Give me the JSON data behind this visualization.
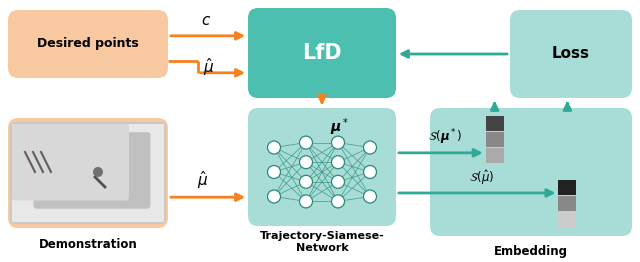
{
  "fig_width": 6.4,
  "fig_height": 2.62,
  "dpi": 100,
  "bg_color": "#ffffff",
  "orange_box_color": "#F8C8A0",
  "teal_box_color": "#4CBFB0",
  "teal_light_color": "#A8DDD7",
  "arrow_orange": "#F5821F",
  "arrow_teal": "#2EAA96",
  "desired_points_label": "Desired points",
  "demo_label": "Demonstration",
  "lfd_label": "LfD",
  "loss_label": "Loss",
  "siamese_label": "Trajectory-Siamese-\nNetwork",
  "embedding_label": "Embedding",
  "label_c": "$c$",
  "label_mu_hat_top": "$\\hat{\\mu}$",
  "label_mu_star": "$\\boldsymbol{\\mu}^*$",
  "label_mu_hat_bot": "$\\hat{\\mu}$",
  "label_S_mu_star": "$\\mathcal{S}(\\boldsymbol{\\mu}^*)$",
  "label_S_mu_hat": "$\\mathcal{S}(\\hat{\\mu})$",
  "emb_colors_left": [
    "#444444",
    "#888888",
    "#aaaaaa"
  ],
  "emb_colors_right": [
    "#222222",
    "#888888",
    "#cccccc"
  ]
}
